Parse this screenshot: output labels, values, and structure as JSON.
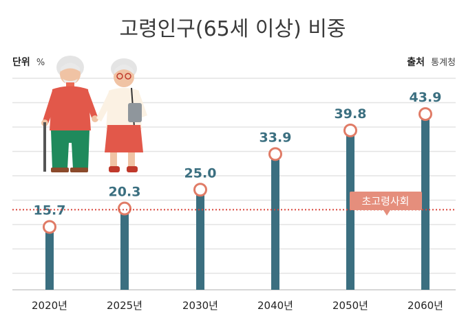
{
  "chart_data": {
    "type": "bar",
    "title": "고령인구(65세 이상) 비중",
    "unit_label": "단위",
    "unit_value": "%",
    "source_label": "출처",
    "source_value": "통계청",
    "categories": [
      "2020년",
      "2025년",
      "2030년",
      "2040년",
      "2050년",
      "2060년"
    ],
    "values": [
      15.7,
      20.3,
      25.0,
      33.9,
      39.8,
      43.9
    ],
    "value_labels": [
      "15.7",
      "20.3",
      "25.0",
      "33.9",
      "39.8",
      "43.9"
    ],
    "threshold": {
      "value": 20,
      "label": "초고령사회"
    },
    "grid": true,
    "colors": {
      "bar": "#3b6f80",
      "marker_stroke": "#e07b66",
      "threshold": "#d9443a",
      "callout": "#e58e7c",
      "grid": "#e3e3e3"
    }
  }
}
